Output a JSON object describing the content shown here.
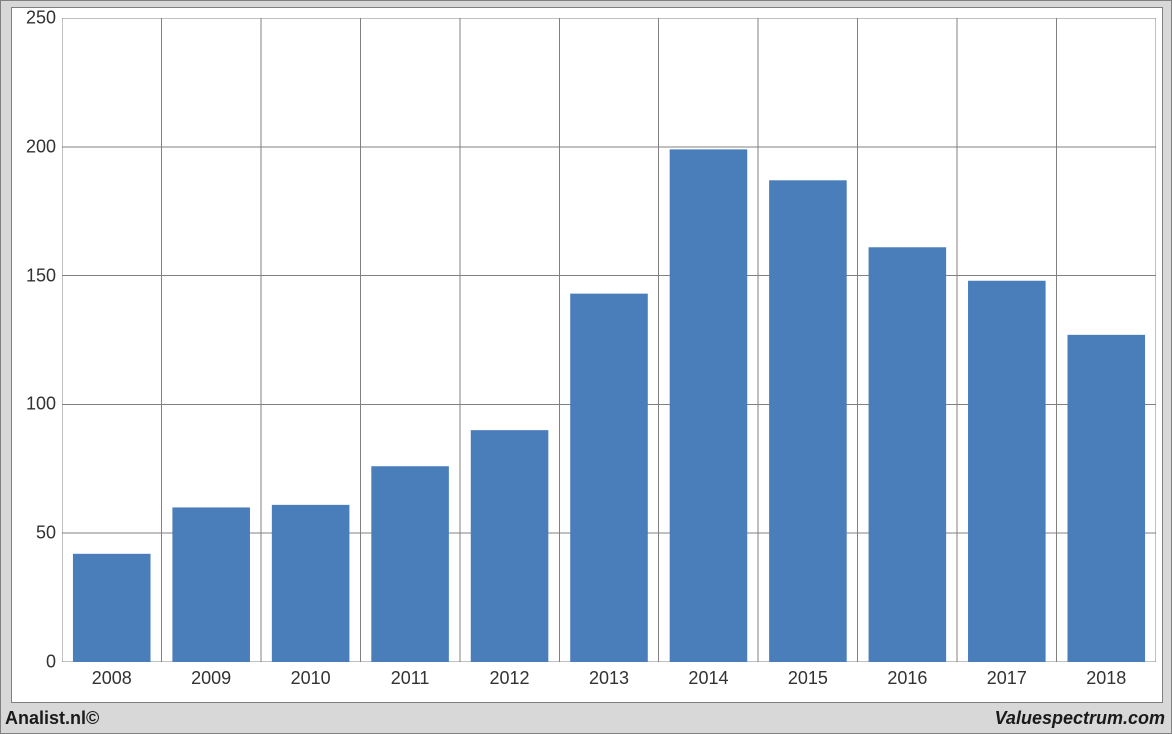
{
  "chart": {
    "type": "bar",
    "categories": [
      "2008",
      "2009",
      "2010",
      "2011",
      "2012",
      "2013",
      "2014",
      "2015",
      "2016",
      "2017",
      "2018"
    ],
    "values": [
      42,
      60,
      61,
      76,
      90,
      143,
      199,
      187,
      161,
      148,
      127
    ],
    "bar_color": "#4a7ebb",
    "background_color": "#ffffff",
    "outer_background_color": "#d8d8d8",
    "grid_color": "#808080",
    "border_color": "#808080",
    "ylim": [
      0,
      250
    ],
    "ytick_step": 50,
    "yticks": [
      0,
      50,
      100,
      150,
      200,
      250
    ],
    "bar_width_ratio": 0.78,
    "tick_label_fontsize": 18,
    "tick_label_color": "#323232",
    "axis_line_width": 1
  },
  "footer": {
    "left_text": "Analist.nl©",
    "right_text": "Valuespectrum.com"
  }
}
